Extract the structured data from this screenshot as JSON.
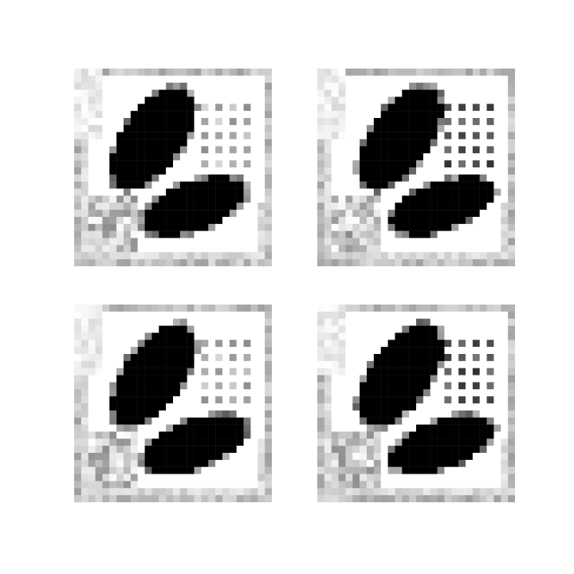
{
  "figure": {
    "panel_count": 4,
    "grid": "2x2",
    "panels": [
      {
        "id": "top-left",
        "variant": 0
      },
      {
        "id": "top-right",
        "variant": 1
      },
      {
        "id": "bottom-left",
        "variant": 2
      },
      {
        "id": "bottom-right",
        "variant": 3
      }
    ],
    "colors": {
      "ink": "#000000",
      "paper": "#ffffff",
      "grid_gray": "#8a8a8a"
    }
  }
}
